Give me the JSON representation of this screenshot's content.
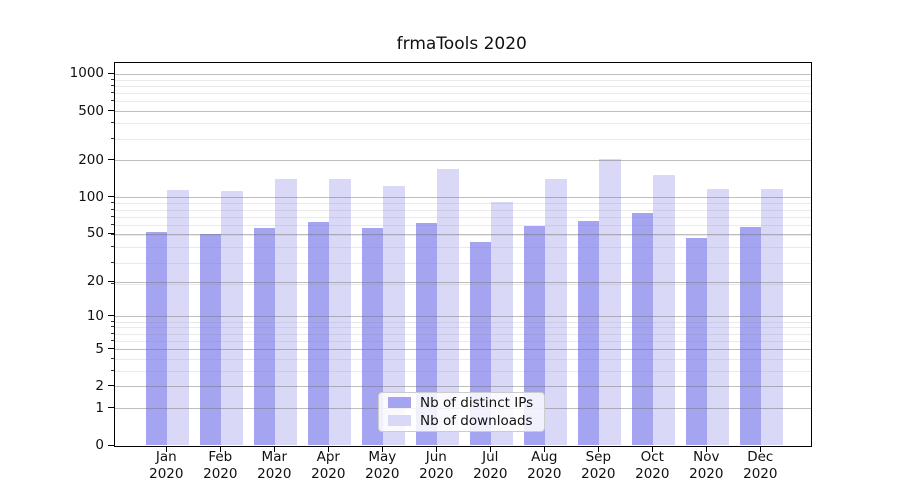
{
  "figure": {
    "title": "frmaTools 2020",
    "background": "#ffffff"
  },
  "chart_data": {
    "type": "bar",
    "title": "frmaTools 2020",
    "categories": [
      "Jan",
      "Feb",
      "Mar",
      "Apr",
      "May",
      "Jun",
      "Jul",
      "Aug",
      "Sep",
      "Oct",
      "Nov",
      "Dec"
    ],
    "category_year": "2020",
    "series": [
      {
        "name": "Nb of distinct IPs",
        "color": "#a4a4f1",
        "values": [
          52,
          50,
          56,
          63,
          56,
          61,
          43,
          58,
          64,
          75,
          46,
          57
        ]
      },
      {
        "name": "Nb of downloads",
        "color": "#d9d9f7",
        "values": [
          115,
          113,
          141,
          140,
          123,
          171,
          92,
          140,
          203,
          151,
          116,
          116
        ]
      }
    ],
    "yscale": "log1p",
    "yticks": [
      0,
      1,
      2,
      5,
      10,
      20,
      50,
      100,
      200,
      500,
      1000
    ],
    "ylim": [
      0,
      1223
    ],
    "grid": "both",
    "legend_position": "lower center",
    "colors": {
      "major_grid": "rgba(110,110,110,0.45)",
      "minor_grid": "rgba(140,140,140,0.18)",
      "spine": "#000000",
      "text": "#111111"
    }
  }
}
